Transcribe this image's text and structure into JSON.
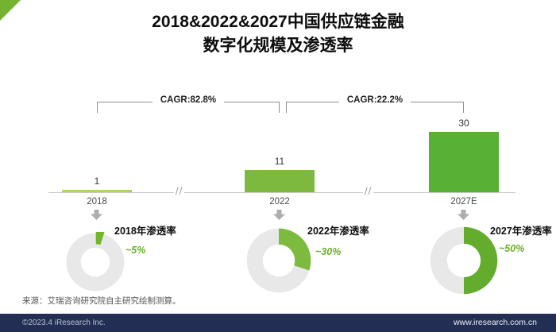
{
  "title_line1": "2018&2022&2027中国供应链金融",
  "title_line2": "数字化规模及渗透率",
  "chart_data": {
    "type": "bar",
    "title": "2018&2022&2027中国供应链金融数字化规模及渗透率",
    "categories": [
      "2018",
      "2022",
      "2027E"
    ],
    "values": [
      1,
      11,
      30
    ],
    "bar_colors": [
      "#b2d45a",
      "#7cb93e",
      "#58b035"
    ],
    "cagr": [
      {
        "label": "CAGR:82.8%"
      },
      {
        "label": "CAGR:22.2%"
      }
    ],
    "axis_break_mark": "//",
    "donut_gray": "#e8e8e8",
    "penetration": [
      {
        "label": "2018年渗透率",
        "value_text": "~5%",
        "pct": 5,
        "color": "#72b62a",
        "exploded": true
      },
      {
        "label": "2022年渗透率",
        "value_text": "~30%",
        "pct": 30,
        "color": "#7cbb3e",
        "exploded": false
      },
      {
        "label": "2027年渗透率",
        "value_text": "~50%",
        "pct": 50,
        "color": "#63ac2d",
        "exploded": false
      }
    ],
    "legend_position": "none",
    "grid": false
  },
  "source_note": "来源：艾瑞咨询研究院自主研究绘制测算。",
  "footer": {
    "left": "©2023.4 iResearch Inc.",
    "right": "www.iresearch.com.cn"
  }
}
